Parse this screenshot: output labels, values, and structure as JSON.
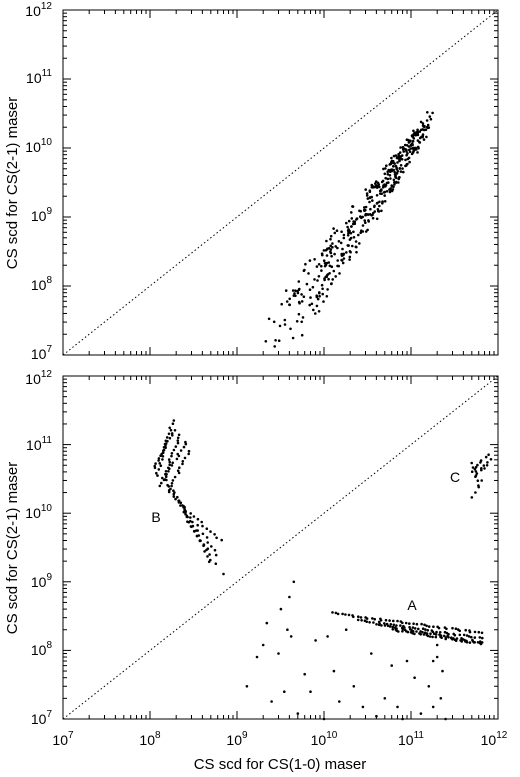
{
  "figure": {
    "ylabel": "CS scd for CS(2-1) maser",
    "xlabel": "CS scd  for CS(1-0) maser",
    "x_ticks": [
      {
        "base": "10",
        "exp": "7"
      },
      {
        "base": "10",
        "exp": "8"
      },
      {
        "base": "10",
        "exp": "9"
      },
      {
        "base": "10",
        "exp": "10"
      },
      {
        "base": "10",
        "exp": "11"
      },
      {
        "base": "10",
        "exp": "12"
      }
    ],
    "y_ticks": [
      {
        "base": "10",
        "exp": "7"
      },
      {
        "base": "10",
        "exp": "8"
      },
      {
        "base": "10",
        "exp": "9"
      },
      {
        "base": "10",
        "exp": "10"
      },
      {
        "base": "10",
        "exp": "11"
      },
      {
        "base": "10",
        "exp": "12"
      }
    ]
  },
  "chart_data": [
    {
      "type": "scatter",
      "panel": "top",
      "xscale": "log",
      "yscale": "log",
      "xlim": [
        10000000.0,
        1000000000000.0
      ],
      "ylim": [
        10000000.0,
        1000000000000.0
      ],
      "ylabel": "CS scd for CS(2-1) maser",
      "reference_line": {
        "style": "dotted",
        "relation": "y = x"
      },
      "grid": false,
      "point_color": "#000000",
      "families": [
        {
          "start": [
            2000000000.0,
            10000000.0
          ],
          "end": [
            180000000000.0,
            33000000000.0
          ],
          "spread_dex": 0.4,
          "count": 120
        },
        {
          "start": [
            2500000000.0,
            15000000.0
          ],
          "end": [
            160000000000.0,
            25000000000.0
          ],
          "spread_dex": 0.55,
          "count": 120
        },
        {
          "start": [
            3500000000.0,
            20000000.0
          ],
          "end": [
            140000000000.0,
            18000000000.0
          ],
          "spread_dex": 0.5,
          "count": 110
        },
        {
          "start": [
            5000000000.0,
            35000000.0
          ],
          "end": [
            150000000000.0,
            22000000000.0
          ],
          "spread_dex": 0.45,
          "count": 100
        }
      ]
    },
    {
      "type": "scatter",
      "panel": "bottom",
      "xscale": "log",
      "yscale": "log",
      "xlim": [
        10000000.0,
        1000000000000.0
      ],
      "ylim": [
        10000000.0,
        1000000000000.0
      ],
      "xlabel": "CS scd  for CS(1-0) maser",
      "ylabel": "CS scd for CS(2-1) maser",
      "reference_line": {
        "style": "dotted",
        "relation": "y = x"
      },
      "grid": false,
      "point_color": "#000000",
      "groups": [
        {
          "label": "A",
          "label_pos": [
            100000000000.0,
            400000000.0
          ],
          "tracks": [
            {
              "start": [
                12000000000.0,
                350000000.0
              ],
              "end": [
                650000000000.0,
                180000000.0
              ],
              "count": 45
            },
            {
              "start": [
                25000000000.0,
                280000000.0
              ],
              "end": [
                650000000000.0,
                150000000.0
              ],
              "count": 40
            },
            {
              "start": [
                40000000000.0,
                240000000.0
              ],
              "end": [
                650000000000.0,
                130000000.0
              ],
              "count": 40
            },
            {
              "start": [
                60000000000.0,
                200000000.0
              ],
              "end": [
                650000000000.0,
                125000000.0
              ],
              "count": 35
            }
          ],
          "scattered": [
            [
              1300000000.0,
              30000000.0
            ],
            [
              1700000000.0,
              80000000.0
            ],
            [
              2000000000.0,
              120000000.0
            ],
            [
              2200000000.0,
              250000000.0
            ],
            [
              2500000000.0,
              18000000.0
            ],
            [
              3000000000.0,
              90000000.0
            ],
            [
              3200000000.0,
              400000000.0
            ],
            [
              3500000000.0,
              25000000.0
            ],
            [
              4000000000.0,
              600000000.0
            ],
            [
              4500000000.0,
              1000000000.0
            ],
            [
              4200000000.0,
              160000000.0
            ],
            [
              3800000000.0,
              200000000.0
            ],
            [
              5000000000.0,
              12000000.0
            ],
            [
              6000000000.0,
              45000000.0
            ],
            [
              7000000000.0,
              25000000.0
            ],
            [
              8000000000.0,
              140000000.0
            ],
            [
              10000000000.0,
              10000000.0
            ],
            [
              11000000000.0,
              160000000.0
            ],
            [
              13000000000.0,
              50000000.0
            ],
            [
              15000000000.0,
              18000000.0
            ],
            [
              18000000000.0,
              200000000.0
            ],
            [
              22000000000.0,
              30000000.0
            ],
            [
              28000000000.0,
              15000000.0
            ],
            [
              35000000000.0,
              90000000.0
            ],
            [
              40000000000.0,
              11000000.0
            ],
            [
              50000000000.0,
              20000000.0
            ],
            [
              60000000000.0,
              60000000.0
            ],
            [
              70000000000.0,
              15000000.0
            ],
            [
              80000000000.0,
              10000000.0
            ],
            [
              90000000000.0,
              70000000.0
            ],
            [
              110000000000.0,
              40000000.0
            ],
            [
              130000000000.0,
              12000000.0
            ],
            [
              160000000000.0,
              30000000.0
            ],
            [
              180000000000.0,
              70000000.0
            ],
            [
              200000000000.0,
              120000000.0
            ],
            [
              220000000000.0,
              20000000.0
            ],
            [
              250000000000.0,
              10000000.0
            ],
            [
              200000000000.0,
              80000000.0
            ],
            [
              230000000000.0,
              50000000.0
            ],
            [
              180000000000.0,
              15000000.0
            ]
          ]
        },
        {
          "label": "B",
          "label_pos": [
            100000000.0,
            11000000000.0
          ],
          "tracks": [
            {
              "start": [
                120000000.0,
                35000000000.0
              ],
              "end": [
                180000000.0,
                220000000000.0
              ],
              "count": 18
            },
            {
              "start": [
                110000000.0,
                45000000000.0
              ],
              "end": [
                190000000.0,
                160000000000.0
              ],
              "count": 16
            },
            {
              "start": [
                140000000.0,
                30000000000.0
              ],
              "end": [
                220000000.0,
                140000000000.0
              ],
              "count": 16
            },
            {
              "start": [
                130000000.0,
                25000000000.0
              ],
              "end": [
                260000000.0,
                110000000000.0
              ],
              "count": 16
            },
            {
              "start": [
                160000000.0,
                20000000000.0
              ],
              "end": [
                280000000.0,
                80000000000.0
              ],
              "count": 14
            },
            {
              "start": [
                150000000.0,
                30000000000.0
              ],
              "end": [
                450000000.0,
                3000000000.0
              ],
              "count": 16
            },
            {
              "start": [
                170000000.0,
                25000000000.0
              ],
              "end": [
                500000000.0,
                2000000000.0
              ],
              "count": 16
            },
            {
              "start": [
                190000000.0,
                20000000000.0
              ],
              "end": [
                550000000.0,
                1800000000.0
              ],
              "count": 16
            },
            {
              "start": [
                210000000.0,
                15000000000.0
              ],
              "end": [
                600000000.0,
                2500000000.0
              ],
              "count": 14
            },
            {
              "start": [
                240000000.0,
                12000000000.0
              ],
              "end": [
                650000000.0,
                4000000000.0
              ],
              "count": 12
            }
          ],
          "scattered": [
            [
              700000000.0,
              1300000000.0
            ]
          ]
        },
        {
          "label": "C",
          "label_pos": [
            420000000000.0,
            30000000000.0
          ],
          "tracks": [
            {
              "start": [
                500000000000.0,
                40000000000.0
              ],
              "end": [
                750000000000.0,
                70000000000.0
              ],
              "count": 8
            },
            {
              "start": [
                550000000000.0,
                35000000000.0
              ],
              "end": [
                800000000000.0,
                60000000000.0
              ],
              "count": 7
            },
            {
              "start": [
                580000000000.0,
                25000000000.0
              ],
              "end": [
                520000000000.0,
                55000000000.0
              ],
              "count": 6
            }
          ],
          "scattered": [
            [
              500000000000.0,
              17000000000.0
            ],
            [
              550000000000.0,
              20000000000.0
            ],
            [
              600000000000.0,
              24000000000.0
            ],
            [
              650000000000.0,
              30000000000.0
            ],
            [
              700000000000.0,
              45000000000.0
            ],
            [
              750000000000.0,
              50000000000.0
            ]
          ]
        }
      ]
    }
  ]
}
